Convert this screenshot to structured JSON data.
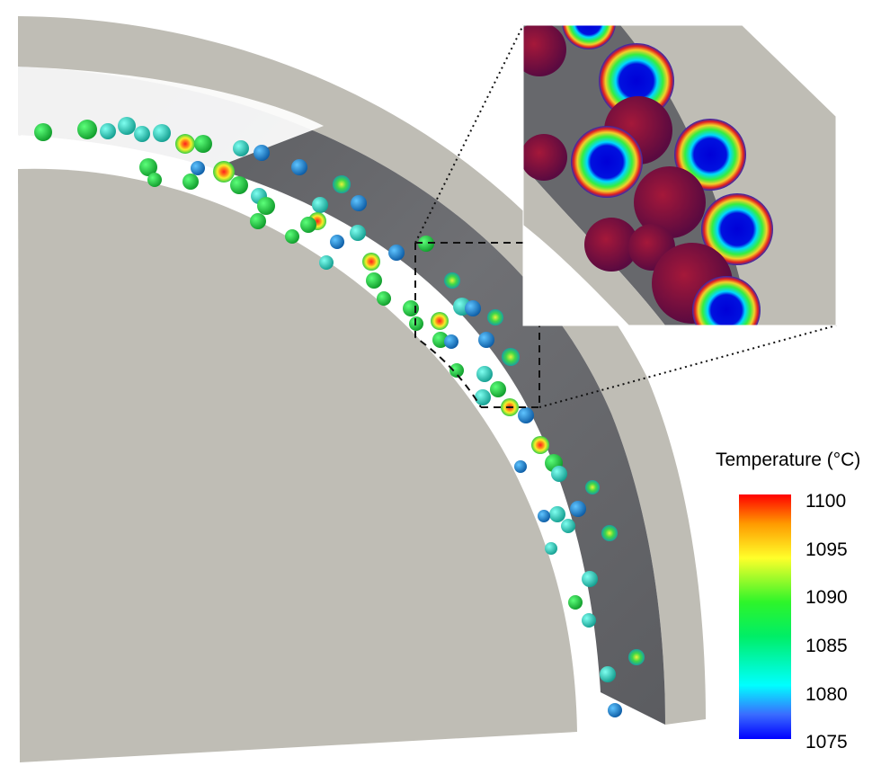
{
  "legend": {
    "title": "Temperature (°C)",
    "ticks": [
      "1100",
      "1095",
      "1090",
      "1085",
      "1080",
      "1075"
    ],
    "min": 1075,
    "max": 1100
  },
  "colors": {
    "solid_wall": "#bfbdb5",
    "inner_surface": "#6b6c70",
    "hot": "#ff0000",
    "cold": "#0000ff"
  }
}
